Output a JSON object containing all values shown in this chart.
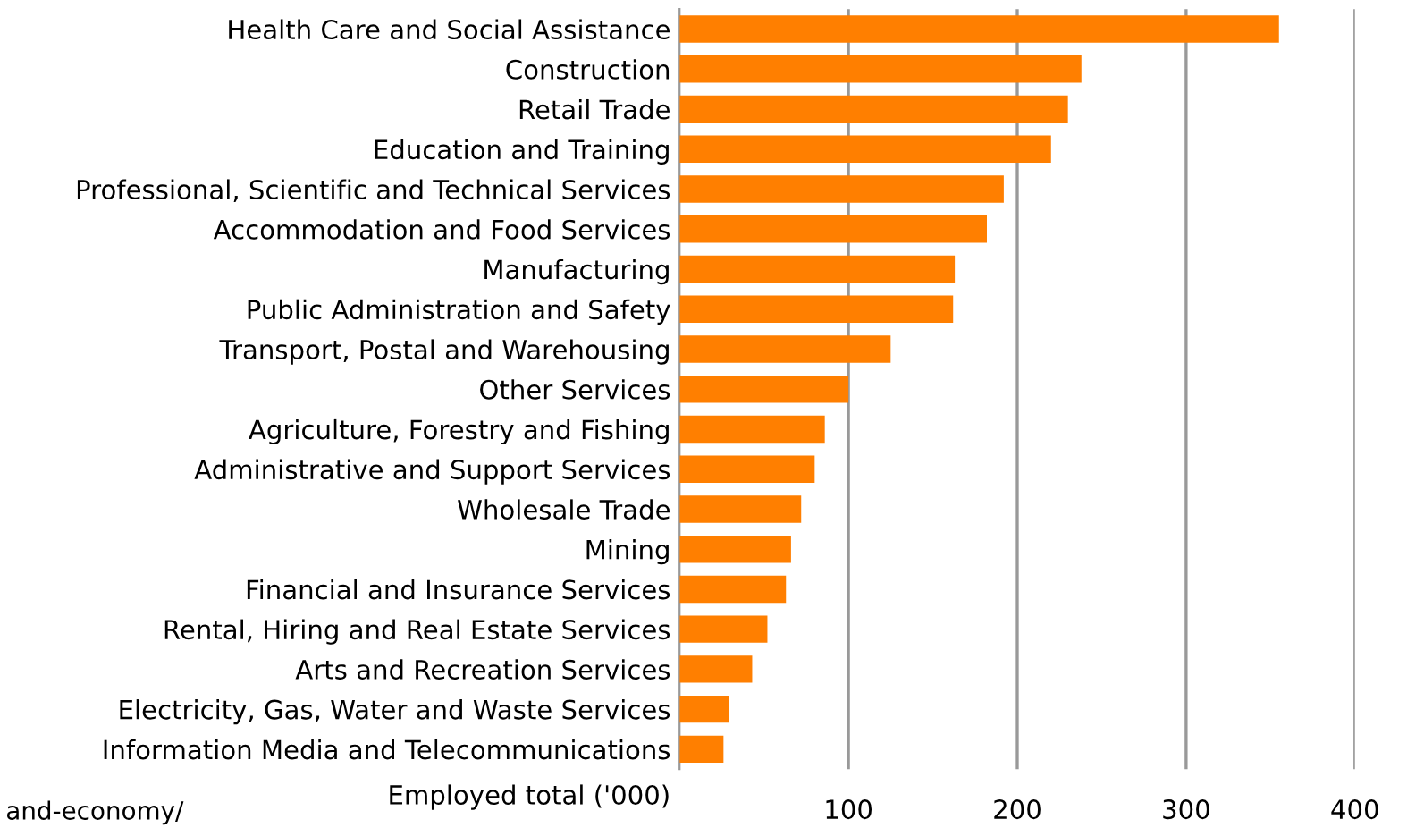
{
  "chart_data": {
    "type": "bar",
    "orientation": "horizontal",
    "xlabel": "Employed total ('000)",
    "categories": [
      "Health Care and Social Assistance",
      "Construction",
      "Retail Trade",
      "Education and Training",
      "Professional, Scientific and Technical Services",
      "Accommodation and Food Services",
      "Manufacturing",
      "Public Administration and Safety",
      "Transport, Postal and Warehousing",
      "Other Services",
      "Agriculture, Forestry and Fishing",
      "Administrative and Support Services",
      "Wholesale Trade",
      "Mining",
      "Financial and Insurance Services",
      "Rental, Hiring and Real Estate Services",
      "Arts and Recreation Services",
      "Electricity, Gas, Water and Waste Services",
      "Information Media and Telecommunications"
    ],
    "values": [
      355,
      238,
      230,
      220,
      192,
      182,
      163,
      162,
      125,
      100,
      86,
      80,
      72,
      66,
      63,
      52,
      43,
      29,
      26
    ],
    "color": "#ff7f00",
    "xlim": [
      0,
      400
    ],
    "xticks": [
      100,
      200,
      300,
      400
    ],
    "grid": "x",
    "annotations": [
      "and-economy/"
    ]
  }
}
